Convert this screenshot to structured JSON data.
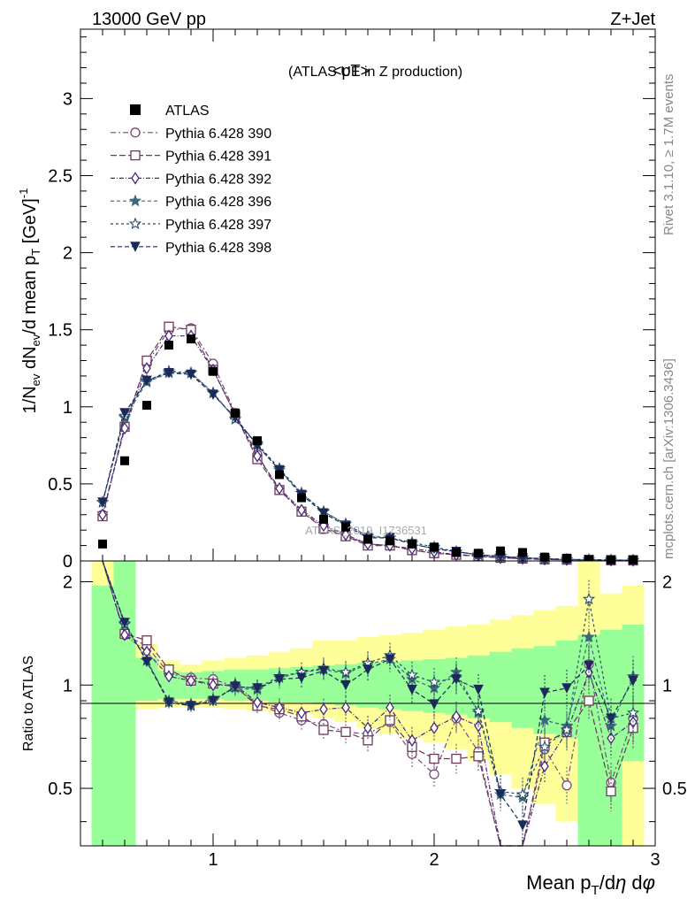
{
  "header": {
    "energy_label": "13000 GeV pp",
    "process_label": "Z+Jet"
  },
  "side_labels": {
    "rivet": "Rivet 3.1.10, ≥ 1.7M events",
    "mcplots": "mcplots.cern.ch [arXiv:1306.3436]"
  },
  "colors": {
    "atlas": "#000000",
    "band_inner": "#99ff99",
    "band_outer": "#ffff99",
    "s390": "#7a4a7a",
    "s391": "#6a3a5a",
    "s392": "#4a2a7a",
    "s396": "#3a6a7a",
    "s397": "#2a4a6a",
    "s398": "#1a2a5a"
  },
  "chart_data": {
    "type": "line",
    "title": "<pT>",
    "subtitle": "(ATLAS UE in Z production)",
    "watermark": "ATLAS_2019_I1736531",
    "xlabel": "Mean p_T/dη dφ",
    "ylabel": "1/N_ev dN_ev/d mean p_T [GeV]^-1",
    "ratio_ylabel": "Ratio to ATLAS",
    "xlim": [
      0.4,
      3.0
    ],
    "ylim": [
      0,
      3.45
    ],
    "ratio_ylim": [
      0.34,
      2.3
    ],
    "x_ticks": [
      "1",
      "2",
      "3"
    ],
    "y_ticks": [
      "0",
      "0.5",
      "1",
      "1.5",
      "2",
      "2.5",
      "3"
    ],
    "ratio_ticks": [
      "0.5",
      "1",
      "2"
    ],
    "legend_position": "top-left",
    "x": [
      0.5,
      0.6,
      0.7,
      0.8,
      0.9,
      1.0,
      1.1,
      1.2,
      1.3,
      1.4,
      1.5,
      1.6,
      1.7,
      1.8,
      1.9,
      2.0,
      2.1,
      2.2,
      2.3,
      2.4,
      2.5,
      2.6,
      2.7,
      2.8,
      2.9
    ],
    "atlas": [
      0.11,
      0.65,
      1.01,
      1.4,
      1.44,
      1.23,
      0.96,
      0.78,
      0.56,
      0.41,
      0.27,
      0.22,
      0.14,
      0.13,
      0.11,
      0.09,
      0.055,
      0.05,
      0.065,
      0.055,
      0.025,
      0.018,
      0.008,
      0.008,
      0.008
    ],
    "band_inner": [
      1.95,
      2.3,
      1.2,
      1.1,
      1.09,
      1.1,
      1.11,
      1.11,
      1.12,
      1.13,
      1.14,
      1.15,
      1.16,
      1.17,
      1.18,
      1.19,
      1.2,
      1.22,
      1.25,
      1.28,
      1.3,
      1.35,
      1.4,
      1.45,
      1.5
    ],
    "band_inner_low": [
      0.34,
      0.34,
      0.9,
      0.91,
      0.91,
      0.91,
      0.9,
      0.9,
      0.89,
      0.89,
      0.88,
      0.87,
      0.86,
      0.85,
      0.84,
      0.83,
      0.82,
      0.8,
      0.78,
      0.75,
      0.72,
      0.7,
      0.34,
      0.34,
      0.6
    ],
    "band_outer": [
      2.3,
      2.3,
      1.32,
      1.18,
      1.15,
      1.18,
      1.2,
      1.22,
      1.25,
      1.28,
      1.35,
      1.35,
      1.38,
      1.4,
      1.42,
      1.45,
      1.48,
      1.5,
      1.55,
      1.6,
      1.65,
      1.7,
      2.3,
      1.85,
      1.95
    ],
    "band_outer_low": [
      0.34,
      0.34,
      0.85,
      0.86,
      0.86,
      0.86,
      0.85,
      0.84,
      0.83,
      0.82,
      0.8,
      0.78,
      0.75,
      0.72,
      0.7,
      0.68,
      0.65,
      0.6,
      0.55,
      0.5,
      0.45,
      0.4,
      0.34,
      0.34,
      0.34
    ],
    "series": [
      {
        "name": "Pythia 6.428 390",
        "marker": "circle-open",
        "dash": "6,3,2,3",
        "values": [
          0.3,
          0.88,
          1.28,
          1.5,
          1.51,
          1.28,
          0.96,
          0.69,
          0.46,
          0.32,
          0.22,
          0.16,
          0.11,
          0.1,
          0.07,
          0.05,
          0.04,
          0.03,
          0.02,
          0.015,
          0.01,
          0.008,
          0.005,
          0.004,
          0.003
        ],
        "ratio": [
          2.7,
          1.4,
          1.3,
          1.08,
          1.05,
          1.04,
          0.99,
          0.88,
          0.83,
          0.79,
          0.77,
          0.73,
          0.72,
          0.78,
          0.63,
          0.55,
          0.8,
          0.64,
          0.32,
          0.3,
          0.65,
          0.51,
          1.15,
          0.52,
          0.8
        ]
      },
      {
        "name": "Pythia 6.428 391",
        "marker": "square-open",
        "dash": "7,3",
        "values": [
          0.29,
          0.87,
          1.3,
          1.52,
          1.5,
          1.24,
          0.95,
          0.66,
          0.46,
          0.32,
          0.21,
          0.16,
          0.1,
          0.1,
          0.07,
          0.05,
          0.04,
          0.03,
          0.02,
          0.015,
          0.01,
          0.008,
          0.005,
          0.004,
          0.003
        ],
        "ratio": [
          2.7,
          1.41,
          1.35,
          1.11,
          1.03,
          1.01,
          0.99,
          0.87,
          0.85,
          0.81,
          0.74,
          0.73,
          0.69,
          0.79,
          0.66,
          0.61,
          0.61,
          0.62,
          0.3,
          0.3,
          0.68,
          0.73,
          0.9,
          0.49,
          0.75
        ]
      },
      {
        "name": "Pythia 6.428 392",
        "marker": "diamond-open",
        "dash": "5,2,1,2",
        "values": [
          0.3,
          0.86,
          1.25,
          1.46,
          1.46,
          1.24,
          0.95,
          0.68,
          0.47,
          0.33,
          0.23,
          0.17,
          0.11,
          0.1,
          0.08,
          0.06,
          0.04,
          0.035,
          0.02,
          0.015,
          0.01,
          0.008,
          0.005,
          0.004,
          0.003
        ],
        "ratio": [
          2.7,
          1.4,
          1.25,
          1.06,
          1.03,
          1.0,
          1.0,
          0.89,
          0.86,
          0.83,
          0.85,
          0.86,
          0.75,
          0.86,
          0.69,
          0.75,
          0.81,
          0.76,
          0.3,
          0.3,
          0.58,
          0.73,
          1.09,
          0.7,
          0.78
        ]
      },
      {
        "name": "Pythia 6.428 396",
        "marker": "star-filled",
        "dash": "4,3",
        "values": [
          0.38,
          0.93,
          1.16,
          1.22,
          1.22,
          1.09,
          0.92,
          0.75,
          0.59,
          0.44,
          0.32,
          0.24,
          0.16,
          0.15,
          0.11,
          0.08,
          0.06,
          0.04,
          0.03,
          0.02,
          0.015,
          0.01,
          0.008,
          0.006,
          0.005
        ],
        "ratio": [
          2.7,
          1.5,
          1.18,
          0.9,
          0.88,
          0.91,
          0.98,
          0.97,
          1.05,
          1.09,
          1.11,
          1.08,
          1.15,
          1.19,
          1.04,
          0.98,
          1.09,
          0.83,
          0.48,
          0.47,
          0.79,
          0.76,
          1.38,
          0.76,
          1.06
        ]
      },
      {
        "name": "Pythia 6.428 397",
        "marker": "star-open",
        "dash": "3,3",
        "values": [
          0.38,
          0.94,
          1.17,
          1.23,
          1.22,
          1.09,
          0.92,
          0.76,
          0.6,
          0.44,
          0.32,
          0.24,
          0.16,
          0.15,
          0.12,
          0.09,
          0.06,
          0.04,
          0.03,
          0.02,
          0.015,
          0.01,
          0.008,
          0.006,
          0.005
        ],
        "ratio": [
          2.7,
          1.51,
          1.18,
          0.89,
          0.87,
          0.9,
          0.99,
          0.98,
          1.06,
          1.09,
          1.12,
          1.09,
          1.16,
          1.22,
          1.07,
          1.02,
          1.05,
          0.84,
          0.49,
          0.48,
          0.66,
          0.74,
          1.78,
          0.8,
          0.83
        ]
      },
      {
        "name": "Pythia 6.428 398",
        "marker": "triangle-down-filled",
        "dash": "5,3",
        "values": [
          0.38,
          0.96,
          1.17,
          1.22,
          1.21,
          1.08,
          0.93,
          0.75,
          0.59,
          0.43,
          0.31,
          0.23,
          0.15,
          0.15,
          0.11,
          0.08,
          0.06,
          0.04,
          0.03,
          0.02,
          0.015,
          0.01,
          0.008,
          0.006,
          0.005
        ],
        "ratio": [
          2.7,
          1.52,
          1.17,
          0.89,
          0.87,
          0.9,
          0.99,
          0.98,
          1.04,
          1.05,
          1.1,
          1.0,
          1.11,
          1.19,
          0.97,
          0.88,
          1.04,
          0.97,
          0.48,
          0.39,
          0.95,
          0.98,
          1.14,
          0.8,
          1.03
        ]
      }
    ]
  }
}
